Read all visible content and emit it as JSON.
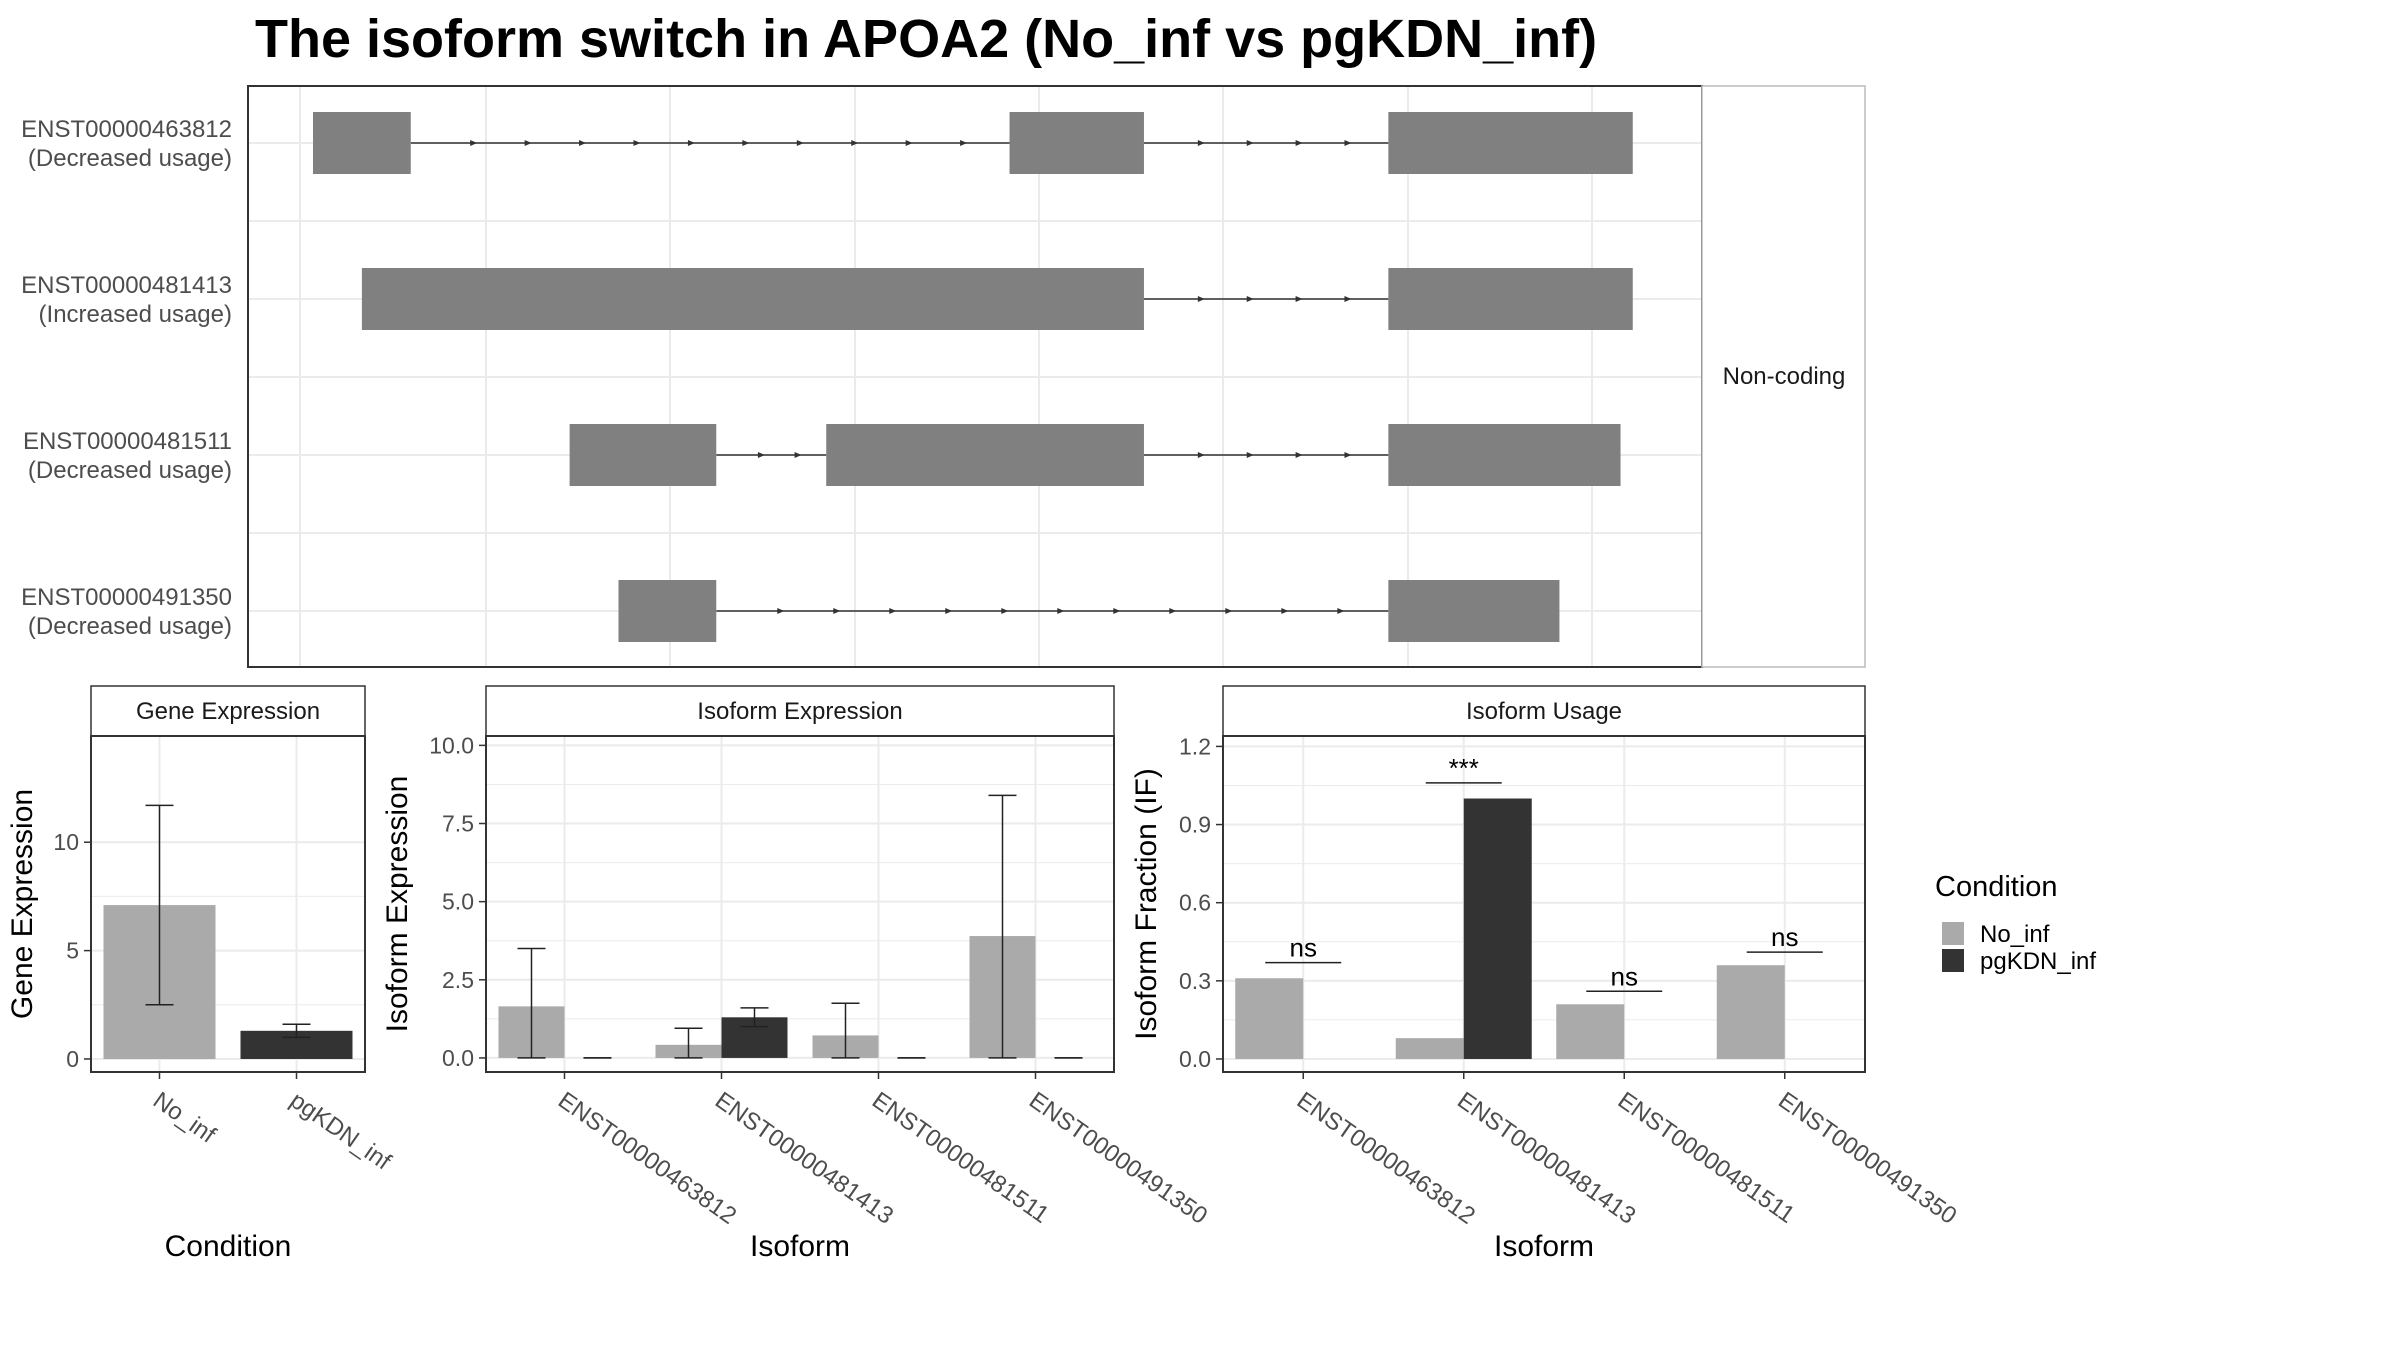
{
  "title": "The isoform switch in APOA2 (No_inf vs pgKDN_inf)",
  "colors": {
    "No_inf": "#aaaaaa",
    "pgKDN_inf": "#333333",
    "exon": "#808080",
    "grid": "#ebebeb",
    "panel_border": "#333333",
    "strip_border": "#bbbbbb"
  },
  "legend": {
    "title": "Condition",
    "items": [
      {
        "label": "No_inf",
        "color": "#aaaaaa"
      },
      {
        "label": "pgKDN_inf",
        "color": "#333333"
      }
    ]
  },
  "chart_data": [
    {
      "type": "gene-structure",
      "facet_label": "Non-coding",
      "transcripts": [
        {
          "id": "ENST00000463812",
          "usage": "(Decreased usage)",
          "exons": [
            [
              0.0,
              0.08
            ],
            [
              0.57,
              0.68
            ],
            [
              0.88,
              1.08
            ]
          ]
        },
        {
          "id": "ENST00000481413",
          "usage": "(Increased usage)",
          "exons": [
            [
              0.04,
              0.68
            ],
            [
              0.88,
              1.08
            ]
          ]
        },
        {
          "id": "ENST00000481511",
          "usage": "(Decreased usage)",
          "exons": [
            [
              0.21,
              0.33
            ],
            [
              0.42,
              0.68
            ],
            [
              0.88,
              1.07
            ]
          ]
        },
        {
          "id": "ENST00000491350",
          "usage": "(Decreased usage)",
          "exons": [
            [
              0.25,
              0.33
            ],
            [
              0.88,
              1.02
            ]
          ]
        }
      ]
    },
    {
      "type": "bar",
      "facet_label": "Gene Expression",
      "xlabel": "Condition",
      "ylabel": "Gene Expression",
      "categories": [
        "No_inf",
        "pgKDN_inf"
      ],
      "values": [
        7.1,
        1.3
      ],
      "errors": [
        [
          2.5,
          11.7
        ],
        [
          1.0,
          1.6
        ]
      ],
      "ylim": [
        -0.6,
        14.9
      ],
      "yticks": [
        0,
        5,
        10
      ],
      "ytick_labels": [
        "0",
        "5",
        "10"
      ]
    },
    {
      "type": "bar",
      "facet_label": "Isoform Expression",
      "xlabel": "Isoform",
      "ylabel": "Isoform Expression",
      "categories": [
        "ENST00000463812",
        "ENST00000481413",
        "ENST00000481511",
        "ENST00000491350"
      ],
      "series": [
        {
          "name": "No_inf",
          "values": [
            1.65,
            0.42,
            0.72,
            3.9
          ],
          "errors": [
            [
              0.0,
              3.5
            ],
            [
              0.0,
              0.95
            ],
            [
              0.0,
              1.75
            ],
            [
              0.0,
              8.4
            ]
          ]
        },
        {
          "name": "pgKDN_inf",
          "values": [
            0.0,
            1.3,
            0.0,
            0.0
          ],
          "errors": [
            [
              0.0,
              0.0
            ],
            [
              1.0,
              1.6
            ],
            [
              0.0,
              0.0
            ],
            [
              0.0,
              0.0
            ]
          ]
        }
      ],
      "ylim": [
        -0.45,
        10.3
      ],
      "yticks": [
        0,
        2.5,
        5,
        7.5,
        10
      ],
      "ytick_labels": [
        "0.0",
        "2.5",
        "5.0",
        "7.5",
        "10.0"
      ]
    },
    {
      "type": "bar",
      "facet_label": "Isoform Usage",
      "xlabel": "Isoform",
      "ylabel": "Isoform Fraction (IF)",
      "categories": [
        "ENST00000463812",
        "ENST00000481413",
        "ENST00000481511",
        "ENST00000491350"
      ],
      "series": [
        {
          "name": "No_inf",
          "values": [
            0.31,
            0.08,
            0.21,
            0.36
          ]
        },
        {
          "name": "pgKDN_inf",
          "values": [
            0.0,
            1.0,
            0.0,
            0.0
          ]
        }
      ],
      "significance": [
        {
          "label": "ns",
          "y": 0.37
        },
        {
          "label": "***",
          "y": 1.06
        },
        {
          "label": "ns",
          "y": 0.26
        },
        {
          "label": "ns",
          "y": 0.41
        }
      ],
      "ylim": [
        -0.05,
        1.24
      ],
      "yticks": [
        0,
        0.3,
        0.6,
        0.9,
        1.2
      ],
      "ytick_labels": [
        "0.0",
        "0.3",
        "0.6",
        "0.9",
        "1.2"
      ]
    }
  ]
}
